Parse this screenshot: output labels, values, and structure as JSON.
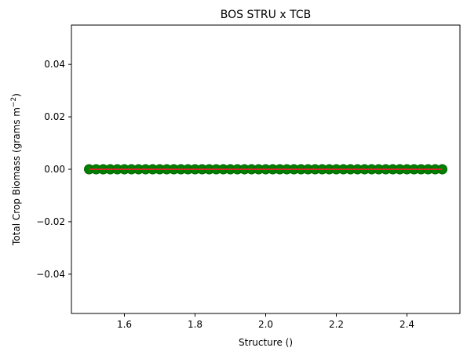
{
  "chart_data": {
    "type": "scatter",
    "title": "BOS STRU x TCB",
    "xlabel": "Structure ()",
    "ylabel_prefix": "Total Crop Biomass (grams m",
    "ylabel_superscript": "−2",
    "ylabel_suffix": ")",
    "xlim": [
      1.45,
      2.55
    ],
    "ylim": [
      -0.055,
      0.055
    ],
    "xticks": [
      {
        "value": 1.6,
        "label": "1.6"
      },
      {
        "value": 1.8,
        "label": "1.8"
      },
      {
        "value": 2.0,
        "label": "2.0"
      },
      {
        "value": 2.2,
        "label": "2.2"
      },
      {
        "value": 2.4,
        "label": "2.4"
      }
    ],
    "yticks": [
      {
        "value": -0.04,
        "label": "−0.04"
      },
      {
        "value": -0.02,
        "label": "−0.02"
      },
      {
        "value": 0.0,
        "label": "0.00"
      },
      {
        "value": 0.02,
        "label": "0.02"
      },
      {
        "value": 0.04,
        "label": "0.04"
      }
    ],
    "grid": false,
    "series": [
      {
        "kind": "points",
        "color": "#008000",
        "x": [
          1.5,
          1.52,
          1.54,
          1.56,
          1.58,
          1.6,
          1.62,
          1.64,
          1.66,
          1.68,
          1.7,
          1.72,
          1.74,
          1.76,
          1.78,
          1.8,
          1.82,
          1.84,
          1.86,
          1.88,
          1.9,
          1.92,
          1.94,
          1.96,
          1.98,
          2.0,
          2.02,
          2.04,
          2.06,
          2.08,
          2.1,
          2.12,
          2.14,
          2.16,
          2.18,
          2.2,
          2.22,
          2.24,
          2.26,
          2.28,
          2.3,
          2.32,
          2.34,
          2.36,
          2.38,
          2.4,
          2.42,
          2.44,
          2.46,
          2.48,
          2.5
        ],
        "y": [
          0,
          0,
          0,
          0,
          0,
          0,
          0,
          0,
          0,
          0,
          0,
          0,
          0,
          0,
          0,
          0,
          0,
          0,
          0,
          0,
          0,
          0,
          0,
          0,
          0,
          0,
          0,
          0,
          0,
          0,
          0,
          0,
          0,
          0,
          0,
          0,
          0,
          0,
          0,
          0,
          0,
          0,
          0,
          0,
          0,
          0,
          0,
          0,
          0,
          0,
          0
        ]
      },
      {
        "kind": "line",
        "color": "#d62728",
        "x": [
          1.5,
          2.5
        ],
        "y": [
          0,
          0
        ]
      }
    ]
  }
}
